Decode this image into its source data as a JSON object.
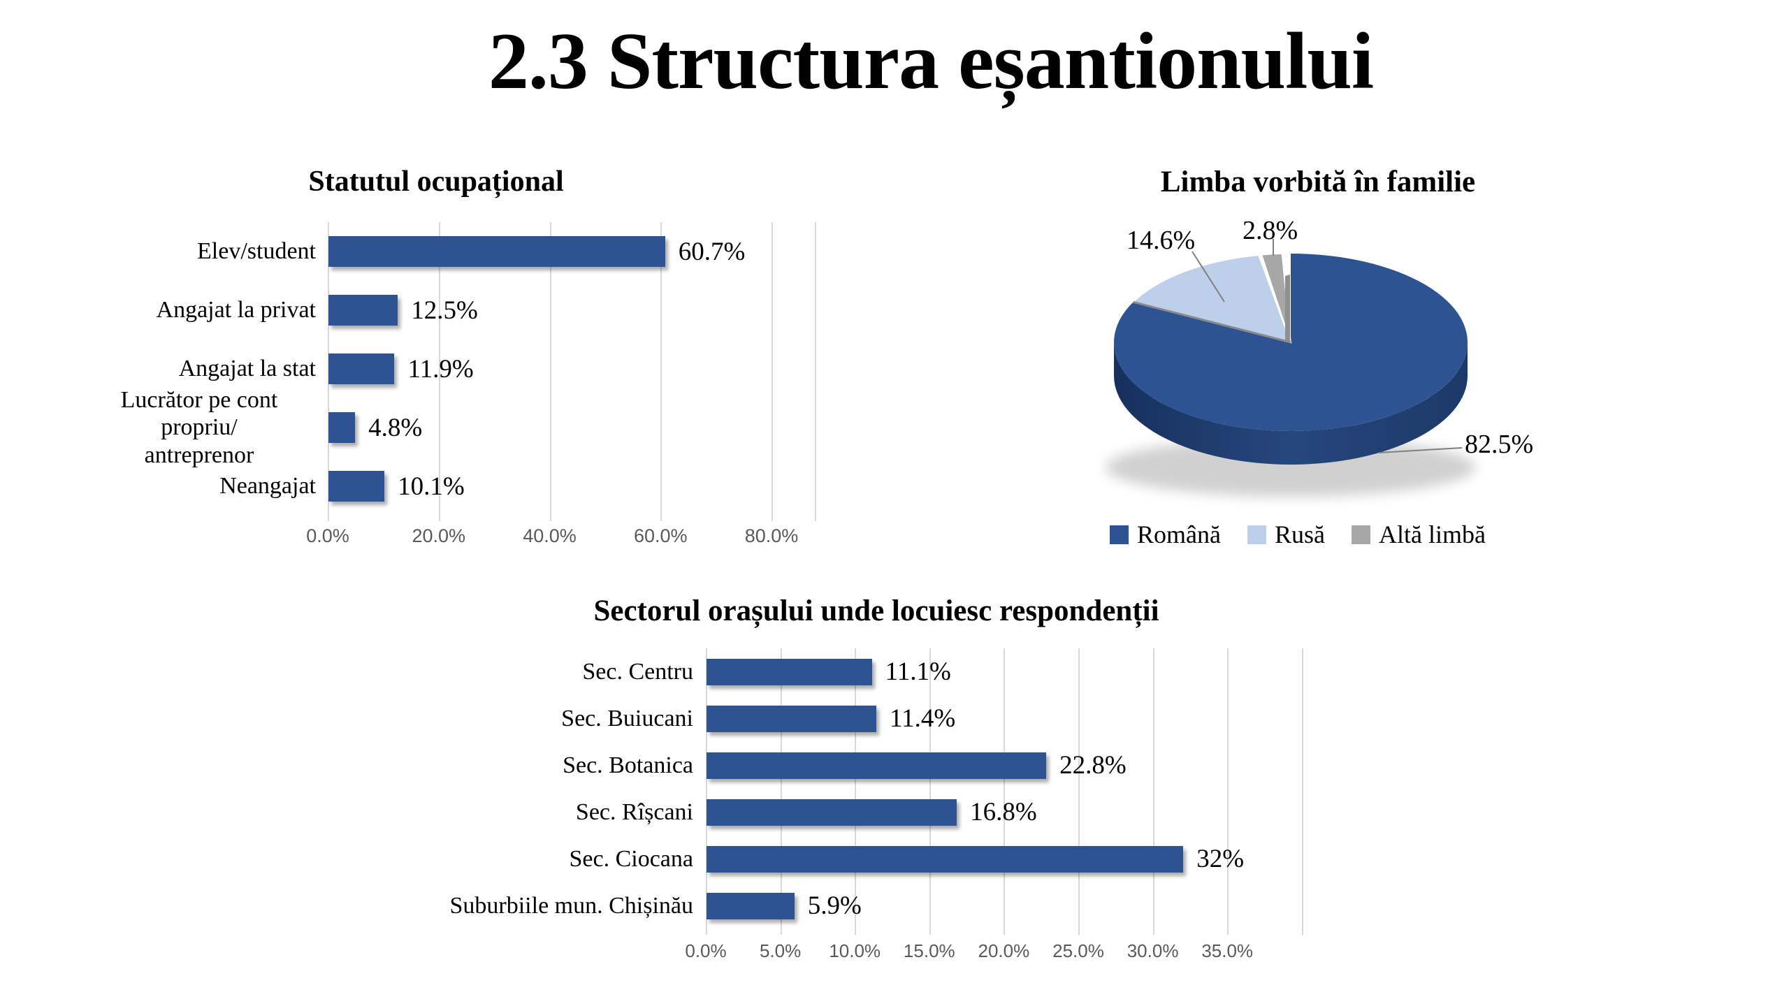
{
  "page": {
    "title": "2.3 Structura eșantionului",
    "background": "#ffffff"
  },
  "colors": {
    "bar_blue": "#2d5392",
    "pie_blue": "#2d5392",
    "pie_blue_side": "#1e3c6c",
    "pie_light_blue": "#bcd0eb",
    "pie_gray": "#a7a7a7",
    "pie_wall_gray": "#8f8f8f",
    "gridline": "#d9d9d9",
    "axis_text": "#595959",
    "leader_line": "#7f7f7f"
  },
  "chart_data": [
    {
      "id": "occupational",
      "type": "bar",
      "orientation": "horizontal",
      "title": "Statutul ocupațional",
      "categories": [
        "Elev/student",
        "Angajat la privat",
        "Angajat la stat",
        "Lucrător pe cont propriu/\nantreprenor",
        "Neangajat"
      ],
      "values": [
        60.7,
        12.5,
        11.9,
        4.8,
        10.1
      ],
      "value_labels": [
        "60.7%",
        "12.5%",
        "11.9%",
        "4.8%",
        "10.1%"
      ],
      "x_ticks": [
        "0.0%",
        "20.0%",
        "40.0%",
        "60.0%",
        "80.0%"
      ],
      "xlabel": "",
      "ylabel": "",
      "xlim": [
        0,
        80
      ],
      "grid": true,
      "unit": "%"
    },
    {
      "id": "language",
      "type": "pie",
      "style": "3d",
      "title": "Limba vorbită în familie",
      "slices": [
        {
          "label": "Română",
          "value": 82.5,
          "label_text": "82.5%",
          "color": "#2d5392"
        },
        {
          "label": "Rusă",
          "value": 14.6,
          "label_text": "14.6%",
          "color": "#bcd0eb"
        },
        {
          "label": "Altă limbă",
          "value": 2.8,
          "label_text": "2.8%",
          "color": "#a7a7a7"
        }
      ],
      "legend": [
        "Română",
        "Rusă",
        "Altă limbă"
      ],
      "legend_position": "bottom"
    },
    {
      "id": "sector",
      "type": "bar",
      "orientation": "horizontal",
      "title": "Sectorul orașului unde locuiesc respondenții",
      "categories": [
        "Sec. Centru",
        "Sec. Buiucani",
        "Sec. Botanica",
        "Sec. Rîșcani",
        "Sec. Ciocana",
        "Suburbiile mun. Chișinău"
      ],
      "values": [
        11.1,
        11.4,
        22.8,
        16.8,
        32,
        5.9
      ],
      "value_labels": [
        "11.1%",
        "11.4%",
        "22.8%",
        "16.8%",
        "32%",
        "5.9%"
      ],
      "x_ticks": [
        "0.0%",
        "5.0%",
        "10.0%",
        "15.0%",
        "20.0%",
        "25.0%",
        "30.0%",
        "35.0%"
      ],
      "xlabel": "",
      "ylabel": "",
      "xlim": [
        0,
        40
      ],
      "grid": true,
      "unit": "%"
    }
  ]
}
